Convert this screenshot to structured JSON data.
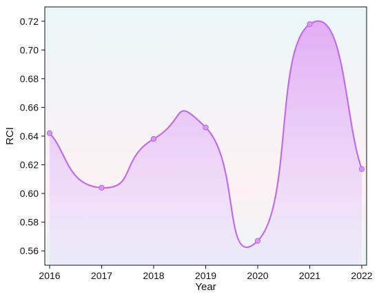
{
  "chart_data": {
    "type": "area",
    "xlabel": "Year",
    "ylabel": "RCI",
    "x": [
      "2016",
      "2017",
      "2018",
      "2019",
      "2020",
      "2021",
      "2022"
    ],
    "series": [
      {
        "values": [
          0.642,
          0.604,
          0.638,
          0.646,
          0.567,
          0.718,
          0.617
        ]
      }
    ],
    "ylim": [
      0.55,
      0.73
    ],
    "yticks": [
      "0.56",
      "0.58",
      "0.60",
      "0.62",
      "0.64",
      "0.66",
      "0.68",
      "0.70",
      "0.72"
    ],
    "grid": false,
    "colors": {
      "line": "#c06ee8",
      "marker_fill": "#d79cf2",
      "area_top": "#e2a8f5",
      "area_bottom": "#ece4fb",
      "plot_bg_top": "#eaf6f8",
      "plot_bg_mid": "#fdf1f4",
      "plot_bg_bottom": "#eaf6f6"
    }
  }
}
